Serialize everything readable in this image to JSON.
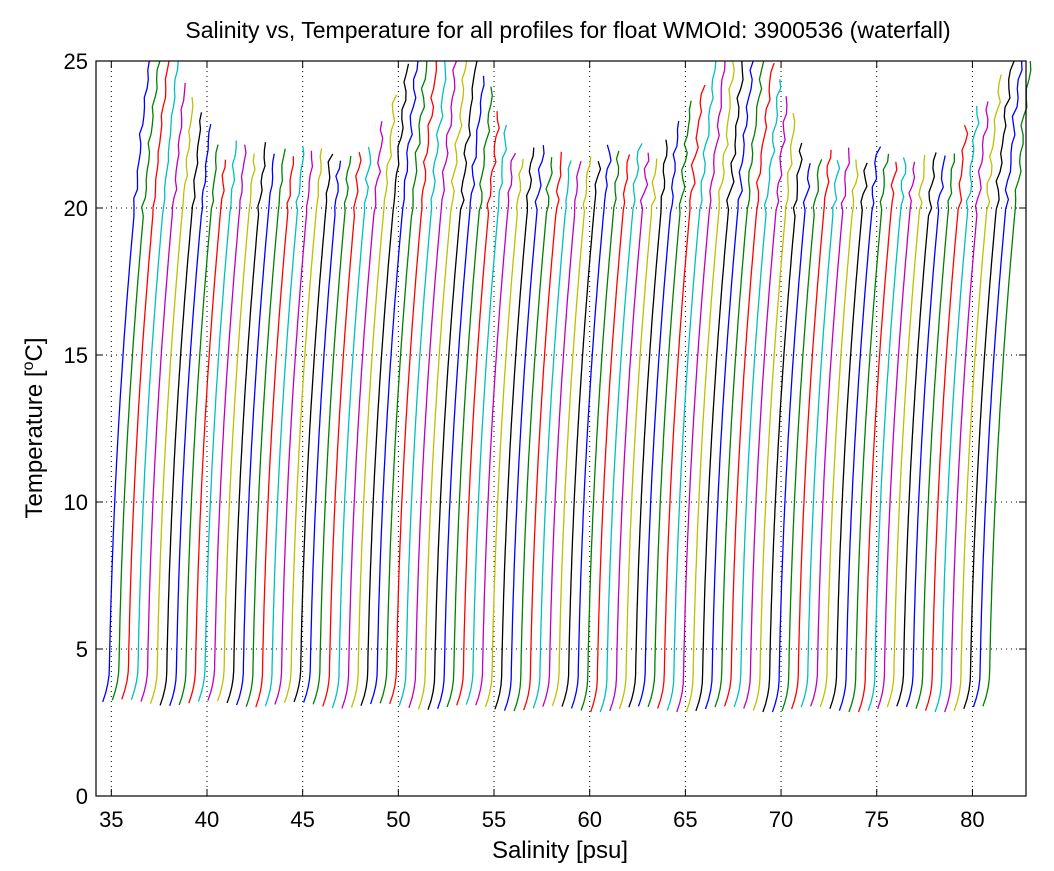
{
  "chart_data": {
    "type": "line",
    "title": "Salinity vs, Temperature for all profiles for float WMOId: 3900536 (waterfall)",
    "xlabel": "Salinity [psu]",
    "ylabel_main": "Temperature [",
    "ylabel_sup": "o",
    "ylabel_end": "C]",
    "xlim": [
      34.2,
      82.8
    ],
    "ylim": [
      0,
      25
    ],
    "xticks": [
      35,
      40,
      45,
      50,
      55,
      60,
      65,
      70,
      75,
      80
    ],
    "yticks": [
      0,
      5,
      10,
      15,
      20,
      25
    ],
    "grid": true,
    "waterfall": {
      "profile_count": 93,
      "first_profile_offset_salinity": 34.9,
      "salinity_step_per_profile": 0.5,
      "bottom_temperature": 3.2,
      "near_surface_temperature_max": 25,
      "color_cycle": [
        "#0000ff",
        "#008000",
        "#ff0000",
        "#00bfbf",
        "#bf00bf",
        "#bfbf00",
        "#000000"
      ]
    }
  }
}
